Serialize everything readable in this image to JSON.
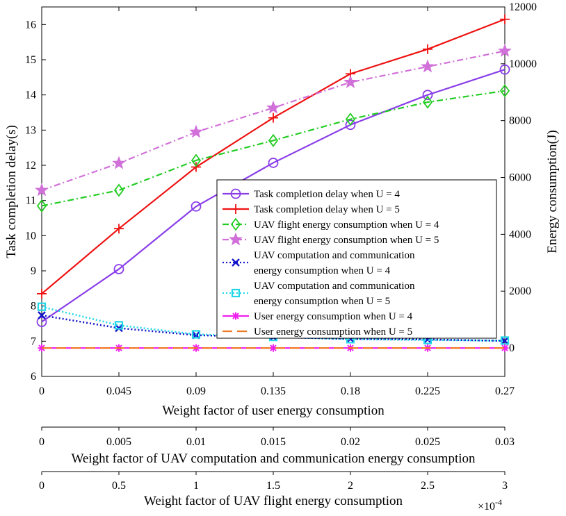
{
  "chart_data": {
    "type": "line",
    "x": [
      0,
      0.045,
      0.09,
      0.135,
      0.18,
      0.225,
      0.27
    ],
    "xlim": [
      0,
      0.27
    ],
    "left_axis": {
      "label": "Task completion delay(s)",
      "ylim": [
        6,
        16.5
      ],
      "ticks": [
        6,
        7,
        8,
        9,
        10,
        11,
        12,
        13,
        14,
        15,
        16
      ]
    },
    "right_axis": {
      "label": "Energy consumption(J)",
      "ylim": [
        -1000,
        12000
      ],
      "ticks": [
        0,
        2000,
        4000,
        6000,
        8000,
        10000,
        12000
      ]
    },
    "x_axes": [
      {
        "label": "Weight factor of user energy consumption",
        "tick_labels": [
          "0",
          "0.045",
          "0.09",
          "0.135",
          "0.18",
          "0.225",
          "0.27"
        ]
      },
      {
        "label": "Weight factor of UAV computation and communication energy consumption",
        "tick_labels": [
          "0",
          "0.005",
          "0.01",
          "0.015",
          "0.02",
          "0.025",
          "0.03"
        ]
      },
      {
        "label": "Weight factor of UAV flight energy consumption",
        "tick_labels": [
          "0",
          "0.5",
          "1",
          "1.5",
          "2",
          "2.5",
          "3"
        ],
        "exponent": "×10",
        "exponent_power": "-4"
      }
    ],
    "series": [
      {
        "name": "Task completion delay when U = 4",
        "axis": "left",
        "color": "#8a3ee8",
        "dash": "",
        "marker": "circle",
        "values": [
          7.55,
          9.05,
          10.83,
          12.07,
          13.15,
          14.0,
          14.72
        ]
      },
      {
        "name": "Task completion delay when U = 5",
        "axis": "left",
        "color": "#ee1111",
        "dash": "",
        "marker": "plus",
        "values": [
          8.35,
          10.2,
          11.95,
          13.35,
          14.6,
          15.3,
          16.15
        ]
      },
      {
        "name": "UAV flight energy consumption when U = 4",
        "axis": "right",
        "color": "#22cc22",
        "dash": "9,4,2,4",
        "marker": "diamond",
        "values": [
          5000,
          5550,
          6600,
          7300,
          8050,
          8650,
          9050
        ]
      },
      {
        "name": "UAV flight energy consumption when U = 5",
        "axis": "right",
        "color": "#d070d8",
        "dash": "9,4,2,4",
        "marker": "star",
        "values": [
          5550,
          6500,
          7600,
          8450,
          9350,
          9900,
          10450
        ]
      },
      {
        "name": "UAV computation and communication energy consumption when U = 4",
        "axis": "right",
        "color": "#1414c8",
        "dash": "2,3",
        "marker": "x",
        "values": [
          1150,
          700,
          450,
          380,
          320,
          300,
          250
        ]
      },
      {
        "name": "UAV computation and communication energy consumption when U = 5",
        "axis": "right",
        "color": "#22d8e8",
        "dash": "2,3",
        "marker": "square",
        "values": [
          1450,
          800,
          480,
          390,
          310,
          280,
          260
        ]
      },
      {
        "name": "User energy consumption when U = 4",
        "axis": "right",
        "color": "#ee22ee",
        "dash": "",
        "marker": "asterisk",
        "values": [
          0,
          0,
          0,
          0,
          0,
          0,
          0
        ]
      },
      {
        "name": "User energy consumption when U = 5",
        "axis": "right",
        "color": "#f07820",
        "dash": "14,7",
        "marker": "none",
        "values": [
          0,
          0,
          0,
          0,
          0,
          0,
          0
        ]
      }
    ],
    "legend": {
      "placement": "center-right",
      "entries": [
        [
          "Task completion delay when U = 4"
        ],
        [
          "Task completion delay when U = 5"
        ],
        [
          "UAV flight energy consumption when U = 4"
        ],
        [
          "UAV flight energy consumption when U = 5"
        ],
        [
          "UAV computation and communication",
          "energy consumption when U = 4"
        ],
        [
          "UAV computation and communication",
          "energy consumption when U = 5"
        ],
        [
          "User energy consumption when U = 4"
        ],
        [
          "User energy consumption when U = 5"
        ]
      ]
    }
  }
}
